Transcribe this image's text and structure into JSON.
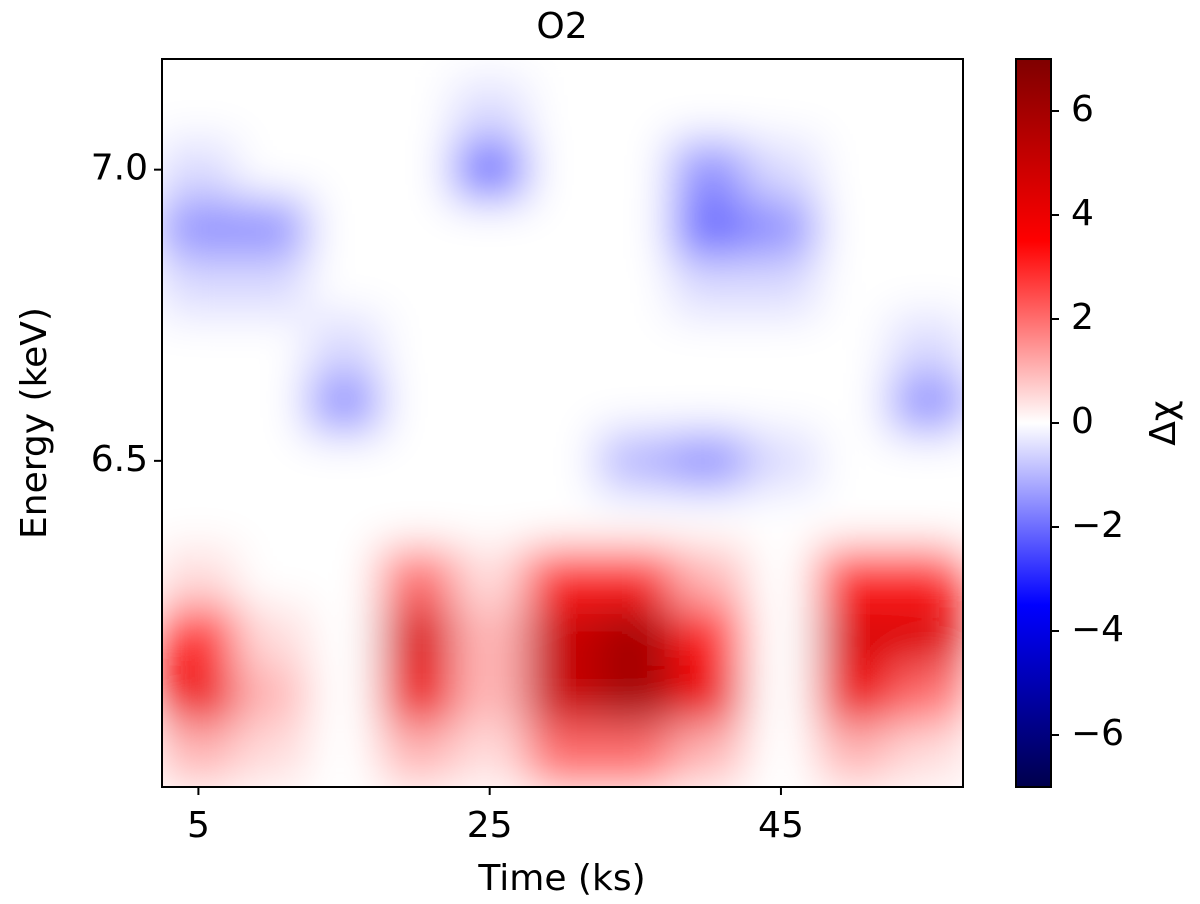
{
  "chart_data": {
    "type": "heatmap",
    "title": "O2",
    "x_label": "Time (ks)",
    "y_label": "Energy (keV)",
    "colorbar_label": "Δχ",
    "x": [
      5,
      10,
      15,
      20,
      25,
      30,
      35,
      40,
      45,
      50,
      55
    ],
    "y": [
      6.0,
      6.1,
      6.2,
      6.3,
      6.4,
      6.5,
      6.6,
      6.7,
      6.8,
      6.9,
      7.0,
      7.1,
      7.2
    ],
    "z": [
      [
        1,
        0.5,
        0,
        1,
        0.5,
        2,
        2,
        1,
        0,
        1,
        0.5
      ],
      [
        4,
        1,
        0,
        4,
        1,
        5,
        6,
        4,
        0,
        4,
        2
      ],
      [
        3,
        0.5,
        0,
        4.5,
        1,
        5,
        6,
        3,
        0,
        4.5,
        4.5
      ],
      [
        0.5,
        0,
        0,
        2,
        0.5,
        3,
        3,
        1,
        0,
        3,
        3
      ],
      [
        0,
        0,
        0,
        0,
        0,
        0,
        0,
        0,
        0,
        0,
        0
      ],
      [
        0,
        0,
        0,
        0,
        0,
        0,
        -1,
        -1.5,
        -0.5,
        0,
        0
      ],
      [
        0,
        0,
        -1.5,
        0,
        0,
        0,
        0,
        0,
        0,
        0,
        -1.5
      ],
      [
        0,
        0,
        -0.5,
        0,
        0,
        0,
        0,
        0,
        0,
        0,
        -0.5
      ],
      [
        -0.5,
        -0.5,
        0,
        0,
        0,
        0,
        0,
        -0.5,
        -0.5,
        0,
        0
      ],
      [
        -1.5,
        -1.5,
        0,
        0,
        0,
        0,
        0,
        -2,
        -1.5,
        0,
        0
      ],
      [
        -0.5,
        0,
        0,
        0,
        -2,
        0,
        0,
        -1.5,
        -0.5,
        0,
        0
      ],
      [
        0,
        0,
        0,
        0,
        -0.5,
        0,
        0,
        0,
        0,
        0,
        0
      ],
      [
        0,
        0,
        0,
        0,
        0,
        0,
        0,
        0,
        0,
        0,
        0
      ]
    ],
    "xlim": [
      2.5,
      57.5
    ],
    "xticks": [
      5,
      25,
      45
    ],
    "ylim": [
      5.94,
      7.19
    ],
    "yticks": [
      {
        "value": 6.5,
        "label": "6.5"
      },
      {
        "value": 7.0,
        "label": "7.0"
      }
    ],
    "zlim": [
      -7,
      7
    ],
    "zticks": [
      {
        "value": -6,
        "label": "−6"
      },
      {
        "value": -4,
        "label": "−4"
      },
      {
        "value": -2,
        "label": "−2"
      },
      0,
      2,
      4,
      6
    ],
    "colormap": [
      "#00004c",
      "#0000ff",
      "#ffffff",
      "#ff0000",
      "#7f0000"
    ]
  }
}
